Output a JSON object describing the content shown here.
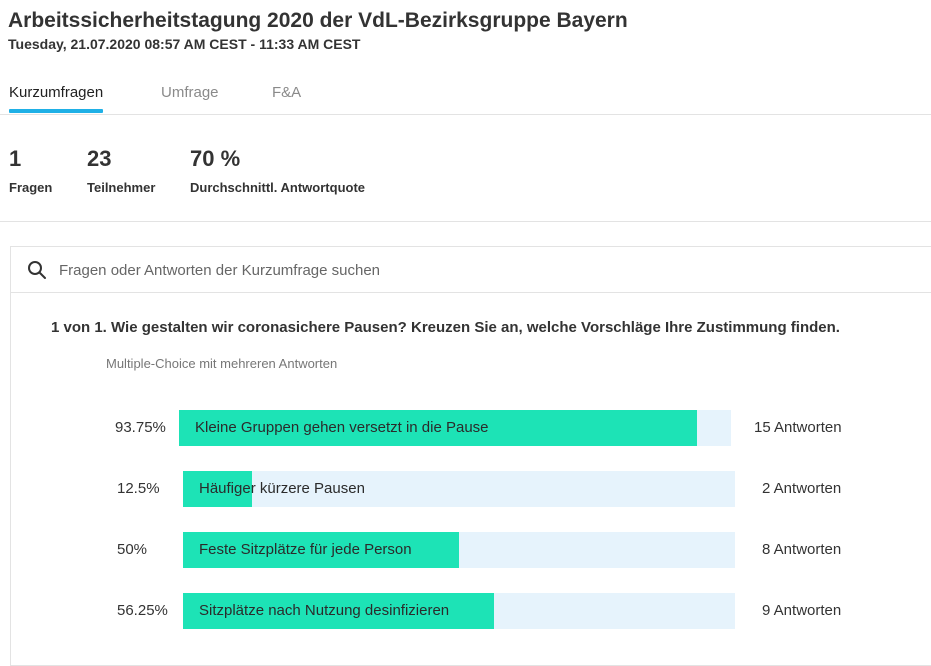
{
  "header": {
    "title": "Arbeitssicherheitstagung 2020 der VdL-Bezirksgruppe Bayern",
    "subtitle": "Tuesday, 21.07.2020 08:57 AM CEST - 11:33 AM CEST"
  },
  "tabs": [
    {
      "label": "Kurzumfragen",
      "active": true
    },
    {
      "label": "Umfrage",
      "active": false
    },
    {
      "label": "F&A",
      "active": false
    }
  ],
  "stats": [
    {
      "value": "1",
      "label": "Fragen"
    },
    {
      "value": "23",
      "label": "Teilnehmer"
    },
    {
      "value": "70 %",
      "label": "Durchschnittl. Antwortquote"
    }
  ],
  "search": {
    "placeholder": "Fragen oder Antworten der Kurzumfrage suchen",
    "icon": "search-icon"
  },
  "question": {
    "text": "1 von 1. Wie gestalten wir coronasichere Pausen? Kreuzen Sie an, welche Vorschläge Ihre Zustimmung finden.",
    "type": "Multiple-Choice mit mehreren Antworten"
  },
  "answers": [
    {
      "percent_label": "93.75%",
      "fraction": 0.9375,
      "label": "Kleine Gruppen gehen versetzt in die Pause",
      "count_label": "15 Antworten"
    },
    {
      "percent_label": "12.5%",
      "fraction": 0.125,
      "label": "Häufiger kürzere Pausen",
      "count_label": "2 Antworten"
    },
    {
      "percent_label": "50%",
      "fraction": 0.5,
      "label": "Feste Sitzplätze für jede Person",
      "count_label": "8 Antworten"
    },
    {
      "percent_label": "56.25%",
      "fraction": 0.5625,
      "label": "Sitzplätze nach Nutzung desinfizieren",
      "count_label": "9 Antworten"
    }
  ],
  "colors": {
    "bar_fill": "#1de3b6",
    "bar_track": "#e6f3fc",
    "tab_accent": "#1fb0e6"
  }
}
